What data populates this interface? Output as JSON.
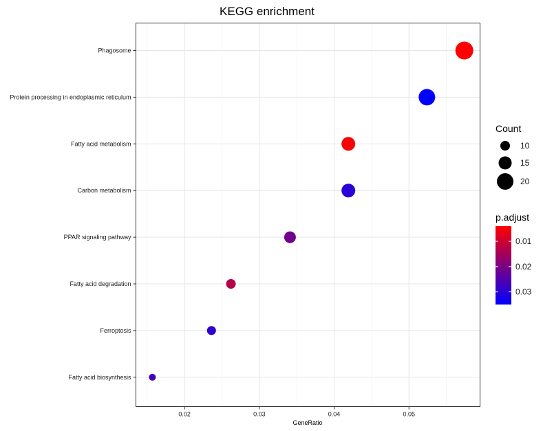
{
  "chart_data": {
    "type": "scatter",
    "title": "KEGG enrichment",
    "xlabel": "GeneRatio",
    "ylabel": "",
    "xlim": [
      0.0135,
      0.0595
    ],
    "xticks": [
      0.02,
      0.03,
      0.04,
      0.05
    ],
    "xtick_labels": [
      "0.02",
      "0.03",
      "0.04",
      "0.05"
    ],
    "grid": true,
    "categories": [
      "Phagosome",
      "Protein processing in endoplasmic reticulum",
      "Fatty acid metabolism",
      "Carbon metabolism",
      "PPAR signaling pathway",
      "Fatty acid degradation",
      "Ferroptosis",
      "Fatty acid biosynthesis"
    ],
    "points": [
      {
        "term": "Phagosome",
        "gene_ratio": 0.0574,
        "count": 22,
        "p_adjust": 0.004
      },
      {
        "term": "Protein processing in endoplasmic reticulum",
        "gene_ratio": 0.0524,
        "count": 20,
        "p_adjust": 0.035
      },
      {
        "term": "Fatty acid metabolism",
        "gene_ratio": 0.0419,
        "count": 16,
        "p_adjust": 0.0045
      },
      {
        "term": "Carbon metabolism",
        "gene_ratio": 0.0419,
        "count": 16,
        "p_adjust": 0.03
      },
      {
        "term": "PPAR signaling pathway",
        "gene_ratio": 0.0341,
        "count": 13,
        "p_adjust": 0.021
      },
      {
        "term": "Fatty acid degradation",
        "gene_ratio": 0.0262,
        "count": 10,
        "p_adjust": 0.013
      },
      {
        "term": "Ferroptosis",
        "gene_ratio": 0.0236,
        "count": 9,
        "p_adjust": 0.029
      },
      {
        "term": "Fatty acid biosynthesis",
        "gene_ratio": 0.0157,
        "count": 6,
        "p_adjust": 0.027
      }
    ],
    "size_legend": {
      "title": "Count",
      "values": [
        10,
        15,
        20
      ],
      "labels": [
        "10",
        "15",
        "20"
      ]
    },
    "color_legend": {
      "title": "p.adjust",
      "low_color": "#FF0000",
      "high_color": "#0000FF",
      "range": [
        0.004,
        0.035
      ],
      "breaks": [
        0.01,
        0.02,
        0.03
      ],
      "labels": [
        "0.01",
        "0.02",
        "0.03"
      ]
    },
    "legend_position": "right"
  }
}
